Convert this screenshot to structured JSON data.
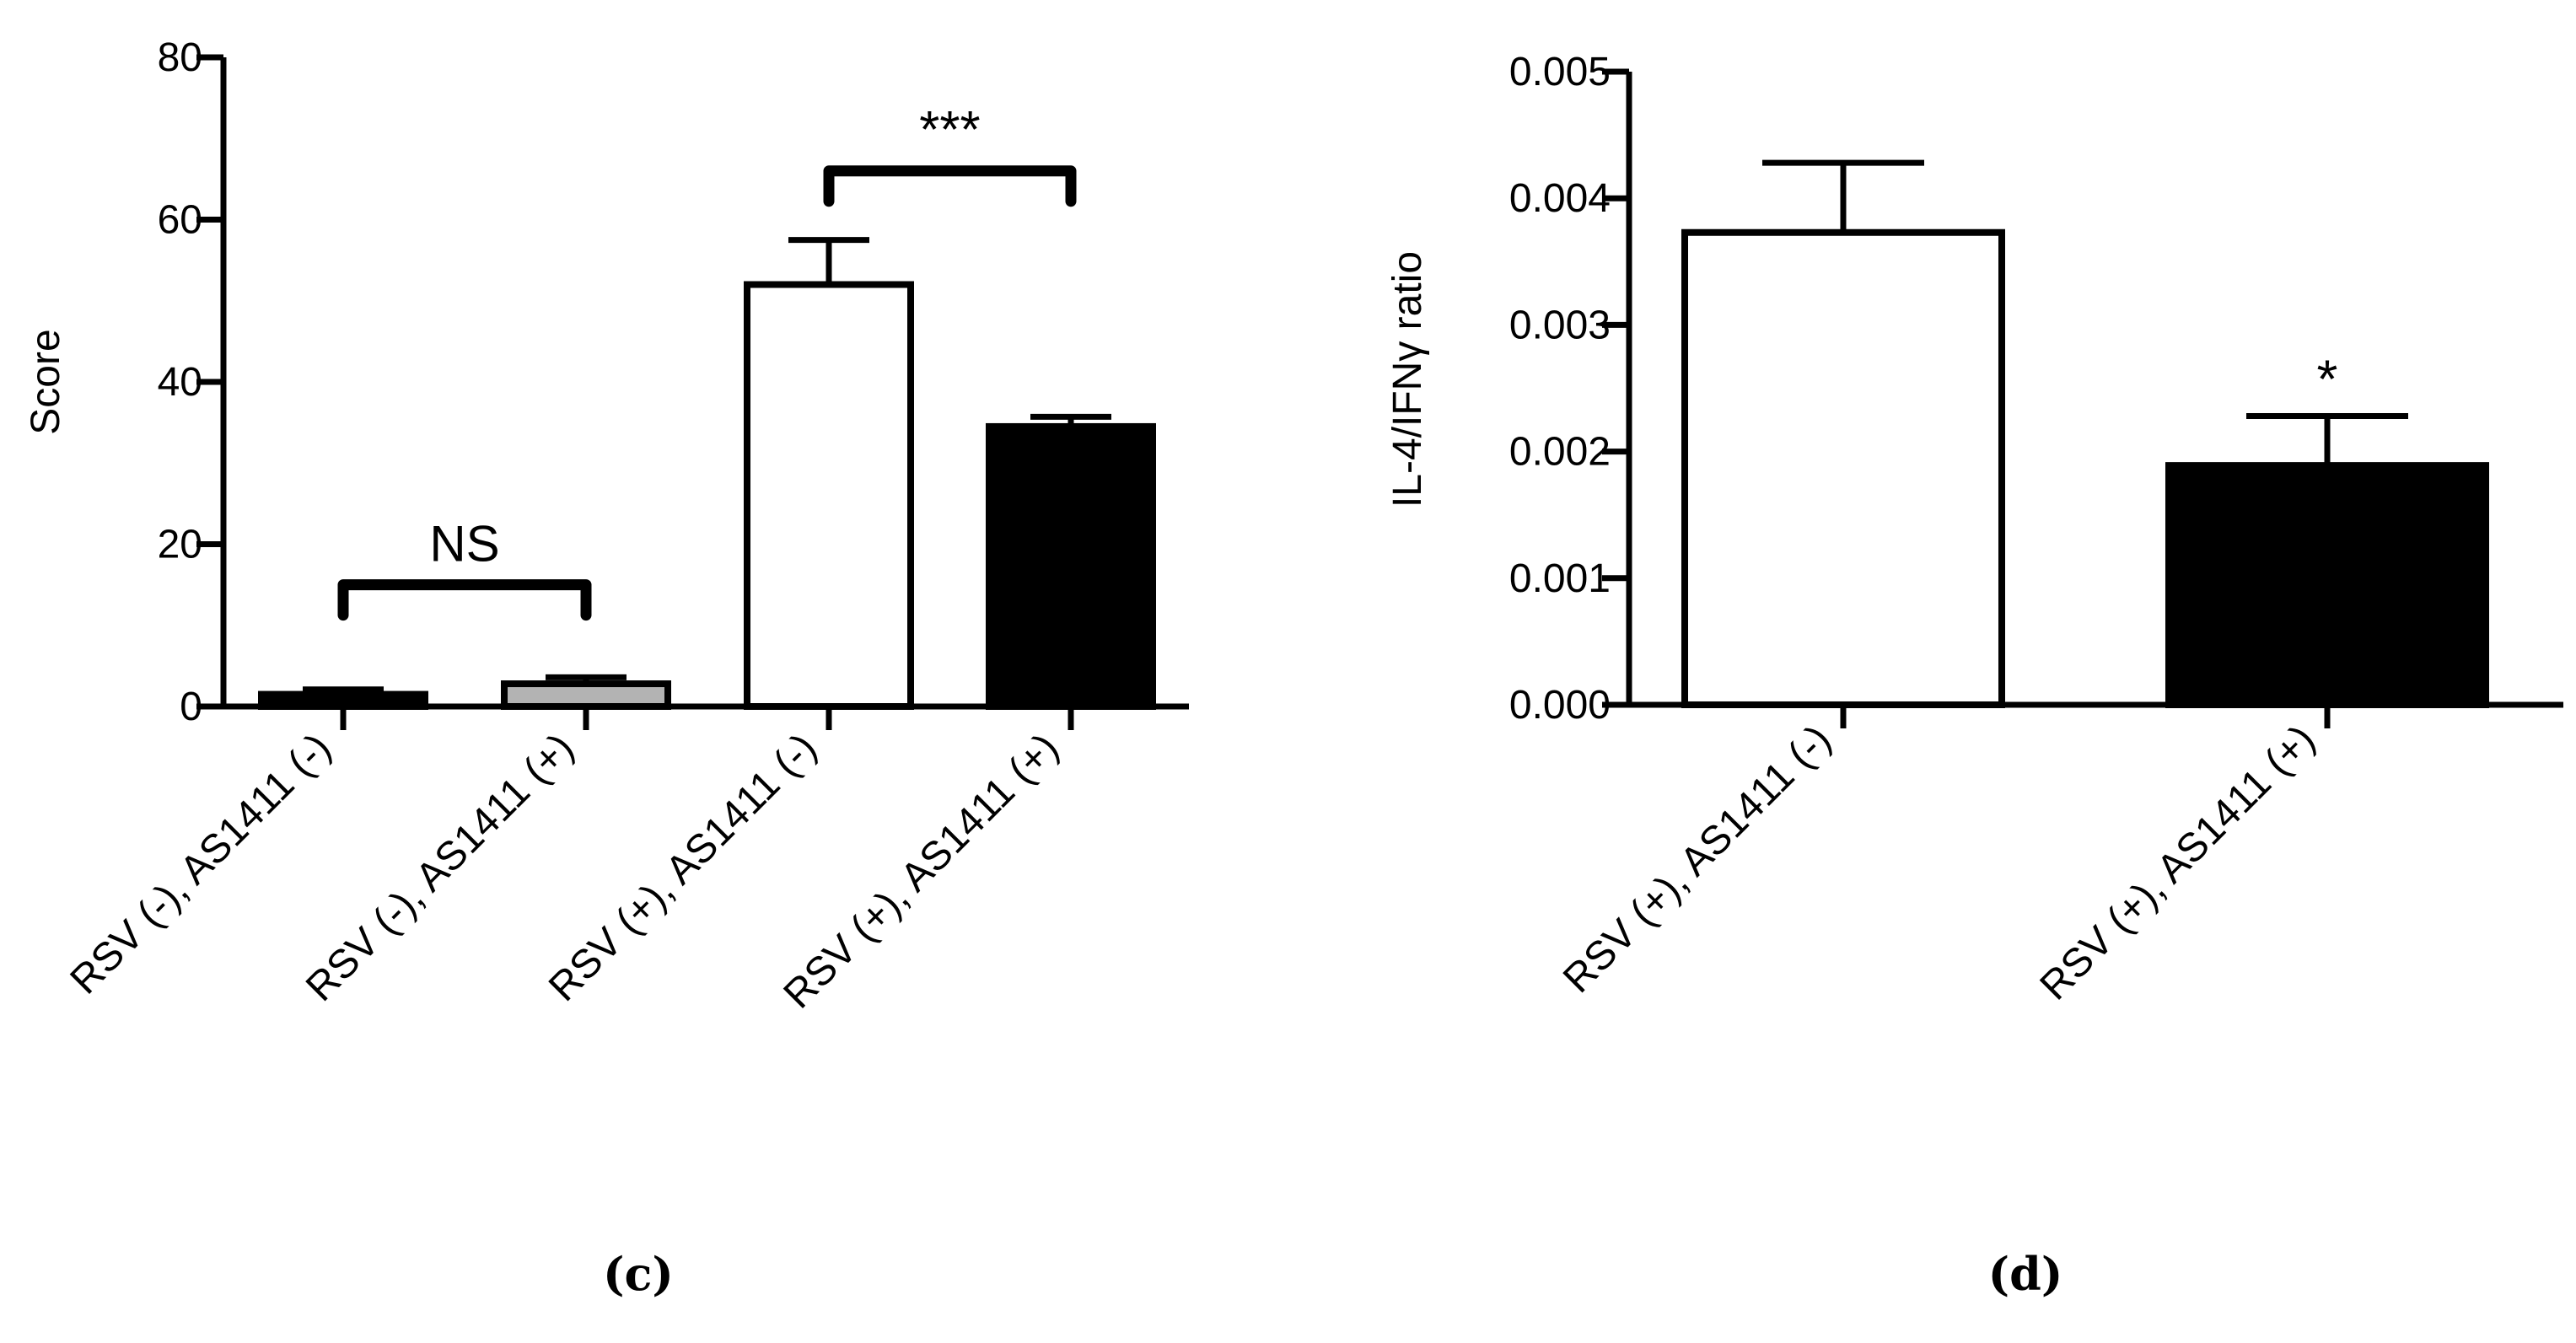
{
  "chart_data": [
    {
      "type": "bar",
      "panel_label": "(c)",
      "title": "",
      "xlabel": "",
      "ylabel": "Score",
      "ylim": [
        0,
        80
      ],
      "yticks": [
        "0",
        "20",
        "40",
        "60",
        "80"
      ],
      "categories": [
        "RSV (-), AS1411 (-)",
        "RSV (-), AS1411 (+)",
        "RSV (+), AS1411 (-)",
        "RSV (+), AS1411 (+)"
      ],
      "values": [
        1.5,
        2.8,
        52,
        34.5
      ],
      "errors": [
        0.6,
        0.8,
        5.5,
        1.2
      ],
      "bar_colors": [
        "#000000",
        "#b3b3b3",
        "#ffffff",
        "#000000"
      ],
      "brackets": [
        {
          "from": 0,
          "to": 1,
          "y": 15,
          "label": "NS"
        },
        {
          "from": 2,
          "to": 3,
          "y": 66,
          "label": "***"
        }
      ]
    },
    {
      "type": "bar",
      "panel_label": "(d)",
      "title": "",
      "xlabel": "",
      "ylabel": "IL-4/IFNγ ratio",
      "ylim": [
        0,
        0.005
      ],
      "yticks": [
        "0.000",
        "0.001",
        "0.002",
        "0.003",
        "0.004",
        "0.005"
      ],
      "categories": [
        "RSV (+), AS1411 (-)",
        "RSV (+), AS1411 (+)"
      ],
      "values": [
        0.00373,
        0.00189
      ],
      "errors": [
        0.00055,
        0.00039
      ],
      "bar_colors": [
        "#ffffff",
        "#000000"
      ],
      "significance": [
        "",
        "*"
      ]
    }
  ]
}
